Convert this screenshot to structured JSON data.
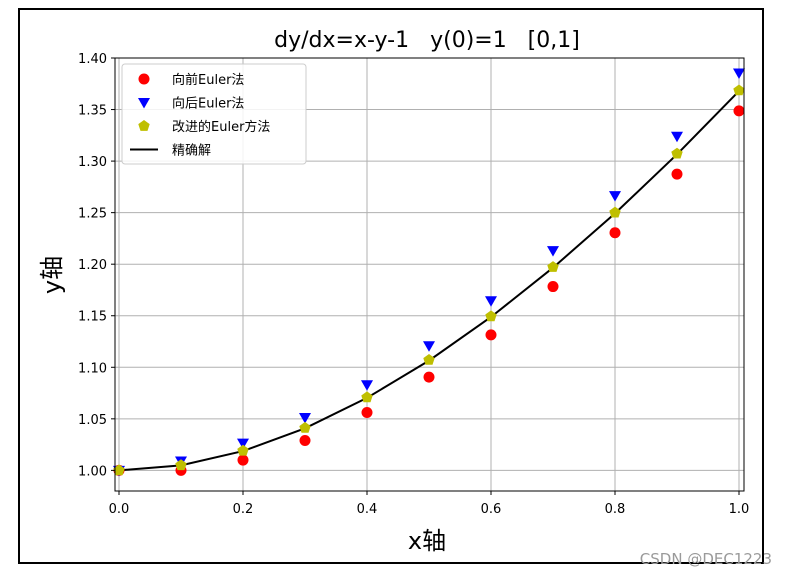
{
  "watermark": "CSDN @DEC1223",
  "chart_data": {
    "type": "scatter",
    "title": "dy/dx=x-y-1   y(0)=1   [0,1]",
    "xlabel": "x轴",
    "ylabel": "y轴",
    "xlim": [
      0.0,
      1.0
    ],
    "ylim": [
      0.98,
      1.4
    ],
    "xticks": [
      "0.0",
      "0.2",
      "0.4",
      "0.6",
      "0.8",
      "1.0"
    ],
    "yticks": [
      "1.00",
      "1.05",
      "1.10",
      "1.15",
      "1.20",
      "1.25",
      "1.30",
      "1.35",
      "1.40"
    ],
    "grid": true,
    "legend_position": "top-left",
    "x": [
      0.0,
      0.1,
      0.2,
      0.3,
      0.4,
      0.5,
      0.6,
      0.7,
      0.8,
      0.9,
      1.0
    ],
    "series": [
      {
        "name": "向前Euler法",
        "marker": "circle",
        "color": "#ff0000",
        "values": [
          1.0,
          1.0,
          1.01,
          1.029,
          1.0561,
          1.0905,
          1.1314,
          1.1783,
          1.2305,
          1.2874,
          1.3487
        ]
      },
      {
        "name": "向后Euler法",
        "marker": "triangle-down",
        "color": "#0000ff",
        "values": [
          1.0,
          1.0091,
          1.0264,
          1.0513,
          1.083,
          1.1209,
          1.1645,
          1.2132,
          1.2665,
          1.3241,
          1.3855
        ]
      },
      {
        "name": "改进的Euler方法",
        "marker": "pentagon",
        "color": "#bfbf00",
        "values": [
          1.0,
          1.005,
          1.019,
          1.0412,
          1.0708,
          1.1071,
          1.1494,
          1.1972,
          1.25,
          1.3072,
          1.3685
        ]
      },
      {
        "name": "精确解",
        "marker": "line",
        "color": "#000000",
        "values": [
          1.0,
          1.0048,
          1.0187,
          1.0408,
          1.0703,
          1.1065,
          1.1488,
          1.1966,
          1.2493,
          1.3066,
          1.3679
        ]
      }
    ]
  }
}
